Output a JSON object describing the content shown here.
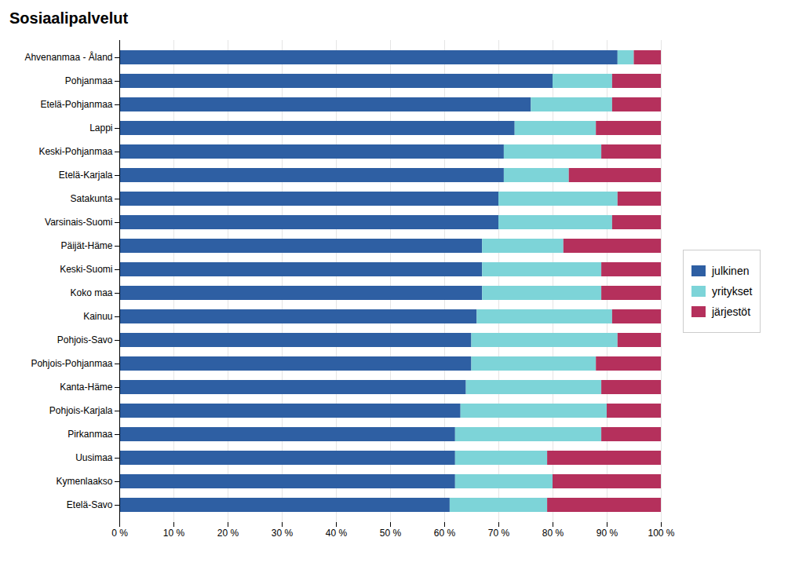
{
  "chart_data": {
    "type": "bar",
    "orientation": "horizontal",
    "stacked": true,
    "title": "Sosiaalipalvelut",
    "categories": [
      "Ahvenanmaa - Åland",
      "Pohjanmaa",
      "Etelä-Pohjanmaa",
      "Lappi",
      "Keski-Pohjanmaa",
      "Etelä-Karjala",
      "Satakunta",
      "Varsinais-Suomi",
      "Päijät-Häme",
      "Keski-Suomi",
      "Koko maa",
      "Kainuu",
      "Pohjois-Savo",
      "Pohjois-Pohjanmaa",
      "Kanta-Häme",
      "Pohjois-Karjala",
      "Pirkanmaa",
      "Uusimaa",
      "Kymenlaakso",
      "Etelä-Savo"
    ],
    "series": [
      {
        "name": "julkinen",
        "color": "#2E5FA3",
        "values": [
          92.0,
          80.0,
          76.0,
          73.0,
          71.0,
          71.0,
          70.0,
          70.0,
          67.0,
          67.0,
          67.0,
          66.0,
          65.0,
          65.0,
          64.0,
          63.0,
          62.0,
          62.0,
          62.0,
          61.0
        ]
      },
      {
        "name": "yritykset",
        "color": "#7DD4D8",
        "values": [
          3.0,
          11.0,
          15.0,
          15.0,
          18.0,
          12.0,
          22.0,
          21.0,
          15.0,
          22.0,
          22.0,
          25.0,
          27.0,
          23.0,
          25.0,
          27.0,
          27.0,
          17.0,
          18.0,
          18.0
        ]
      },
      {
        "name": "järjestöt",
        "color": "#B5305C",
        "values": [
          5.0,
          9.0,
          9.0,
          12.0,
          11.0,
          17.0,
          8.0,
          9.0,
          18.0,
          11.0,
          11.0,
          9.0,
          8.0,
          12.0,
          11.0,
          10.0,
          11.0,
          21.0,
          20.0,
          21.0
        ]
      }
    ],
    "xlim": [
      0,
      100
    ],
    "xticks": [
      {
        "value": 0,
        "label": "0 %"
      },
      {
        "value": 10,
        "label": "10 %"
      },
      {
        "value": 20,
        "label": "20 %"
      },
      {
        "value": 30,
        "label": "30 %"
      },
      {
        "value": 40,
        "label": "40 %"
      },
      {
        "value": 50,
        "label": "50 %"
      },
      {
        "value": 60,
        "label": "60 %"
      },
      {
        "value": 70,
        "label": "70 %"
      },
      {
        "value": 80,
        "label": "80 %"
      },
      {
        "value": 90,
        "label": "90 %"
      },
      {
        "value": 100,
        "label": "100 %"
      }
    ],
    "grid": true,
    "legend": "right"
  }
}
